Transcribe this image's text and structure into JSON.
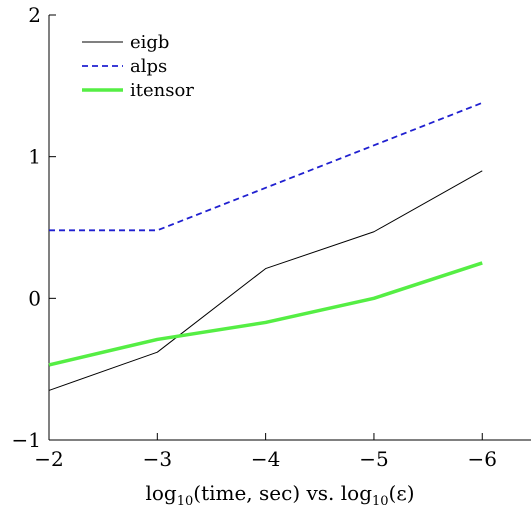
{
  "chart_data": {
    "type": "line",
    "title": "",
    "xlabel": {
      "prefix": "log",
      "prefix_sub": "10",
      "middle": "(time, sec) vs. log",
      "middle_sub": "10",
      "suffix": "(ε)"
    },
    "ylabel": "",
    "x": [
      -2,
      -3,
      -4,
      -5,
      -6
    ],
    "xlim": [
      -2,
      -6.45
    ],
    "ylim": [
      -1,
      2
    ],
    "xticks": [
      -2,
      -3,
      -4,
      -5,
      -6
    ],
    "xtick_labels": [
      "−2",
      "−3",
      "−4",
      "−5",
      "−6"
    ],
    "yticks": [
      -1,
      0,
      1,
      2
    ],
    "ytick_labels": [
      "−1",
      "0",
      "1",
      "2"
    ],
    "grid": false,
    "legend_position": "top-left",
    "series": [
      {
        "name": "eigb",
        "values": [
          -0.65,
          -0.38,
          0.21,
          0.47,
          0.9
        ],
        "color": "#000000",
        "style": "solid",
        "width": 1
      },
      {
        "name": "alps",
        "values": [
          0.48,
          0.48,
          0.78,
          1.08,
          1.38
        ],
        "color": "#2020d0",
        "style": "dashed",
        "width": 1.8
      },
      {
        "name": "itensor",
        "values": [
          -0.47,
          -0.29,
          -0.17,
          0.0,
          0.25
        ],
        "color": "#55ee44",
        "style": "solid",
        "width": 3.5
      }
    ]
  }
}
